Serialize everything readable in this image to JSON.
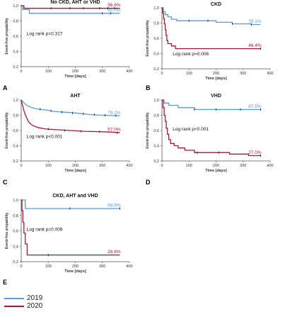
{
  "colors": {
    "y2019": "#5B9BD5",
    "y2020": "#A6173C"
  },
  "legend": [
    {
      "label": "2019",
      "color": "#5B9BD5"
    },
    {
      "label": "2020",
      "color": "#A6173C"
    }
  ],
  "chart_data": [
    {
      "type": "line",
      "title": "No CKD, AHT or VHD",
      "panel_letter": "A",
      "ylabel": "Event-free propability",
      "xlabel": "Time [days]",
      "xlim": [
        0,
        400
      ],
      "ylim": [
        0.2,
        1.0
      ],
      "xticks": [
        0,
        100,
        200,
        300,
        400
      ],
      "xticklabels": [
        "0",
        "100",
        "200",
        "300",
        "400"
      ],
      "yticks": [
        0.2,
        0.4,
        0.6,
        0.8,
        1.0
      ],
      "yticklabels": [
        "0,2",
        "0,4",
        "0,6",
        "0,8",
        "1,0"
      ],
      "annotation": "Log rank p=0.317",
      "series": [
        {
          "name": "2019",
          "end_label": "90.0%",
          "points": [
            [
              0,
              1.0
            ],
            [
              5,
              1.0
            ],
            [
              5,
              0.95
            ],
            [
              30,
              0.95
            ],
            [
              30,
              0.9
            ],
            [
              365,
              0.9
            ]
          ],
          "censored": [
            [
              300,
              0.9
            ],
            [
              330,
              0.9
            ]
          ]
        },
        {
          "name": "2020",
          "end_label": "96.6%",
          "points": [
            [
              0,
              1.0
            ],
            [
              10,
              1.0
            ],
            [
              10,
              0.966
            ],
            [
              365,
              0.966
            ]
          ],
          "censored": [
            [
              110,
              0.966
            ],
            [
              180,
              0.966
            ],
            [
              230,
              0.966
            ],
            [
              290,
              0.966
            ],
            [
              320,
              0.966
            ],
            [
              345,
              0.966
            ]
          ]
        }
      ]
    },
    {
      "type": "line",
      "title": "CKD",
      "panel_letter": "B",
      "ylabel": "Event-free propability",
      "xlabel": "Time [days]",
      "xlim": [
        0,
        400
      ],
      "ylim": [
        0.2,
        1.0
      ],
      "xticks": [
        0,
        100,
        200,
        300,
        400
      ],
      "xticklabels": [
        "0",
        "100",
        "200",
        "300",
        "400"
      ],
      "yticks": [
        0.2,
        0.4,
        0.6,
        0.8,
        1.0
      ],
      "yticklabels": [
        "0,2",
        "0,4",
        "0,6",
        "0,8",
        "1,0"
      ],
      "annotation": "Log rank p=0.006",
      "series": [
        {
          "name": "2019",
          "end_label": "78.1%",
          "points": [
            [
              0,
              1.0
            ],
            [
              5,
              1.0
            ],
            [
              5,
              0.95
            ],
            [
              12,
              0.95
            ],
            [
              12,
              0.91
            ],
            [
              22,
              0.91
            ],
            [
              22,
              0.88
            ],
            [
              35,
              0.88
            ],
            [
              35,
              0.85
            ],
            [
              55,
              0.85
            ],
            [
              55,
              0.83
            ],
            [
              200,
              0.83
            ],
            [
              200,
              0.81
            ],
            [
              260,
              0.81
            ],
            [
              260,
              0.79
            ],
            [
              330,
              0.79
            ],
            [
              330,
              0.781
            ],
            [
              365,
              0.781
            ]
          ],
          "censored": [
            [
              100,
              0.83
            ],
            [
              170,
              0.83
            ],
            [
              260,
              0.79
            ],
            [
              330,
              0.781
            ]
          ]
        },
        {
          "name": "2020",
          "end_label": "46.4%",
          "points": [
            [
              0,
              1.0
            ],
            [
              3,
              1.0
            ],
            [
              3,
              0.93
            ],
            [
              6,
              0.93
            ],
            [
              6,
              0.86
            ],
            [
              9,
              0.86
            ],
            [
              9,
              0.79
            ],
            [
              12,
              0.79
            ],
            [
              12,
              0.71
            ],
            [
              15,
              0.71
            ],
            [
              15,
              0.64
            ],
            [
              18,
              0.64
            ],
            [
              18,
              0.57
            ],
            [
              22,
              0.57
            ],
            [
              22,
              0.53
            ],
            [
              35,
              0.53
            ],
            [
              35,
              0.5
            ],
            [
              50,
              0.5
            ],
            [
              50,
              0.464
            ],
            [
              365,
              0.464
            ]
          ],
          "censored": [
            [
              365,
              0.464
            ]
          ]
        }
      ]
    },
    {
      "type": "line",
      "title": "AHT",
      "panel_letter": "C",
      "ylabel": "Event-free propability",
      "xlabel": "Time [days]",
      "xlim": [
        0,
        400
      ],
      "ylim": [
        0.2,
        1.0
      ],
      "xticks": [
        0,
        100,
        200,
        300,
        400
      ],
      "xticklabels": [
        "0",
        "100",
        "200",
        "300",
        "400"
      ],
      "yticks": [
        0.2,
        0.4,
        0.6,
        0.8,
        1.0
      ],
      "yticklabels": [
        "0,2",
        "0,4",
        "0,6",
        "0,8",
        "1,0"
      ],
      "annotation": "Log rank p<0.001",
      "series": [
        {
          "name": "2019",
          "end_label": "79.2%",
          "points": [
            [
              0,
              1.0
            ],
            [
              8,
              0.97
            ],
            [
              20,
              0.93
            ],
            [
              40,
              0.9
            ],
            [
              60,
              0.88
            ],
            [
              90,
              0.87
            ],
            [
              120,
              0.85
            ],
            [
              160,
              0.84
            ],
            [
              200,
              0.83
            ],
            [
              250,
              0.81
            ],
            [
              300,
              0.8
            ],
            [
              365,
              0.792
            ]
          ],
          "censored": [
            [
              70,
              0.88
            ],
            [
              110,
              0.86
            ],
            [
              150,
              0.84
            ],
            [
              190,
              0.83
            ],
            [
              230,
              0.82
            ],
            [
              270,
              0.81
            ],
            [
              310,
              0.8
            ],
            [
              350,
              0.795
            ]
          ]
        },
        {
          "name": "2020",
          "end_label": "57.0%",
          "points": [
            [
              0,
              1.0
            ],
            [
              5,
              0.93
            ],
            [
              10,
              0.86
            ],
            [
              18,
              0.78
            ],
            [
              28,
              0.71
            ],
            [
              40,
              0.67
            ],
            [
              60,
              0.64
            ],
            [
              90,
              0.62
            ],
            [
              130,
              0.61
            ],
            [
              180,
              0.6
            ],
            [
              230,
              0.59
            ],
            [
              280,
              0.585
            ],
            [
              330,
              0.58
            ],
            [
              365,
              0.57
            ]
          ],
          "censored": [
            [
              100,
              0.62
            ],
            [
              160,
              0.6
            ],
            [
              220,
              0.59
            ],
            [
              290,
              0.585
            ],
            [
              355,
              0.57
            ]
          ]
        }
      ]
    },
    {
      "type": "line",
      "title": "VHD",
      "panel_letter": "D",
      "ylabel": "Event-free propability",
      "xlabel": "Time [days]",
      "xlim": [
        0,
        400
      ],
      "ylim": [
        0.2,
        1.0
      ],
      "xticks": [
        0,
        100,
        200,
        300,
        400
      ],
      "xticklabels": [
        "0",
        "100",
        "200",
        "300",
        "400"
      ],
      "yticks": [
        0.2,
        0.4,
        0.6,
        0.8,
        1.0
      ],
      "yticklabels": [
        "0,2",
        "0,4",
        "0,6",
        "0,8",
        "1,0"
      ],
      "annotation": "Log rank p<0.001",
      "series": [
        {
          "name": "2019",
          "end_label": "87.5%",
          "points": [
            [
              0,
              1.0
            ],
            [
              8,
              1.0
            ],
            [
              8,
              0.96
            ],
            [
              25,
              0.96
            ],
            [
              25,
              0.93
            ],
            [
              60,
              0.93
            ],
            [
              60,
              0.9
            ],
            [
              120,
              0.9
            ],
            [
              120,
              0.875
            ],
            [
              365,
              0.875
            ]
          ],
          "censored": [
            [
              120,
              0.875
            ],
            [
              200,
              0.875
            ],
            [
              290,
              0.875
            ],
            [
              365,
              0.875
            ]
          ]
        },
        {
          "name": "2020",
          "end_label": "27.0%",
          "points": [
            [
              0,
              1.0
            ],
            [
              4,
              1.0
            ],
            [
              4,
              0.9
            ],
            [
              8,
              0.9
            ],
            [
              8,
              0.8
            ],
            [
              12,
              0.8
            ],
            [
              12,
              0.72
            ],
            [
              16,
              0.72
            ],
            [
              16,
              0.63
            ],
            [
              20,
              0.63
            ],
            [
              20,
              0.55
            ],
            [
              25,
              0.55
            ],
            [
              25,
              0.48
            ],
            [
              32,
              0.48
            ],
            [
              32,
              0.43
            ],
            [
              45,
              0.43
            ],
            [
              45,
              0.4
            ],
            [
              60,
              0.4
            ],
            [
              60,
              0.37
            ],
            [
              85,
              0.37
            ],
            [
              85,
              0.34
            ],
            [
              120,
              0.34
            ],
            [
              120,
              0.31
            ],
            [
              250,
              0.31
            ],
            [
              250,
              0.29
            ],
            [
              320,
              0.29
            ],
            [
              320,
              0.27
            ],
            [
              365,
              0.27
            ]
          ],
          "censored": [
            [
              130,
              0.31
            ],
            [
              210,
              0.31
            ],
            [
              365,
              0.27
            ]
          ]
        }
      ]
    },
    {
      "type": "line",
      "title": "CKD, AHT and VHD",
      "panel_letter": "E",
      "ylabel": "Event-free propability",
      "xlabel": "Time [days]",
      "xlim": [
        0,
        400
      ],
      "ylim": [
        0.2,
        1.0
      ],
      "xticks": [
        0,
        100,
        200,
        300,
        400
      ],
      "xticklabels": [
        "0",
        "100",
        "200",
        "300",
        "400"
      ],
      "yticks": [
        0.2,
        0.4,
        0.6,
        0.8,
        1.0
      ],
      "yticklabels": [
        "0,2",
        "0,4",
        "0,6",
        "0,8",
        "1,0"
      ],
      "annotation": "Log rank p=0.009",
      "series": [
        {
          "name": "2019",
          "end_label": "88.9%",
          "points": [
            [
              0,
              1.0
            ],
            [
              15,
              1.0
            ],
            [
              15,
              0.889
            ],
            [
              365,
              0.889
            ]
          ],
          "censored": [
            [
              180,
              0.889
            ],
            [
              365,
              0.889
            ]
          ]
        },
        {
          "name": "2020",
          "end_label": "28.6%",
          "points": [
            [
              0,
              1.0
            ],
            [
              3,
              1.0
            ],
            [
              3,
              0.86
            ],
            [
              6,
              0.86
            ],
            [
              6,
              0.71
            ],
            [
              10,
              0.71
            ],
            [
              10,
              0.57
            ],
            [
              15,
              0.57
            ],
            [
              15,
              0.43
            ],
            [
              22,
              0.43
            ],
            [
              22,
              0.286
            ],
            [
              365,
              0.286
            ]
          ],
          "censored": [
            [
              100,
              0.286
            ]
          ]
        }
      ]
    }
  ]
}
